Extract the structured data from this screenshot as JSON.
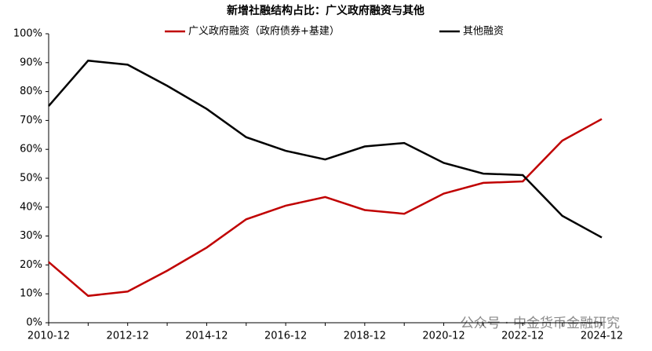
{
  "chart_data": {
    "type": "line",
    "title": "新增社融结构占比：广义政府融资与其他",
    "categories": [
      "2010-12",
      null,
      "2012-12",
      null,
      "2014-12",
      null,
      "2016-12",
      null,
      "2018-12",
      null,
      "2020-12",
      null,
      "2022-12",
      null,
      "2024-12"
    ],
    "series": [
      {
        "name": "广义政府融资（政府债券+基建）",
        "color": "#c00000",
        "values": [
          21,
          9.3,
          10.8,
          18,
          26,
          35.8,
          40.5,
          43.5,
          39,
          37.7,
          44.7,
          48.4,
          48.9,
          63,
          70.5
        ]
      },
      {
        "name": "其他融资",
        "color": "#000000",
        "values": [
          75,
          90.7,
          89.3,
          82,
          74,
          64.2,
          59.5,
          56.5,
          61,
          62.2,
          55.3,
          51.6,
          51.1,
          37,
          29.5
        ]
      }
    ],
    "ylim": [
      0,
      100
    ],
    "yticks": [
      {
        "value": 0,
        "label": "0%"
      },
      {
        "value": 10,
        "label": "10%"
      },
      {
        "value": 20,
        "label": "20%"
      },
      {
        "value": 30,
        "label": "30%"
      },
      {
        "value": 40,
        "label": "40%"
      },
      {
        "value": 50,
        "label": "50%"
      },
      {
        "value": 60,
        "label": "60%"
      },
      {
        "value": 70,
        "label": "70%"
      },
      {
        "value": 80,
        "label": "80%"
      },
      {
        "value": 90,
        "label": "90%"
      },
      {
        "value": 100,
        "label": "100%"
      }
    ],
    "watermark": "公众号 · 中金货币金融研究"
  }
}
